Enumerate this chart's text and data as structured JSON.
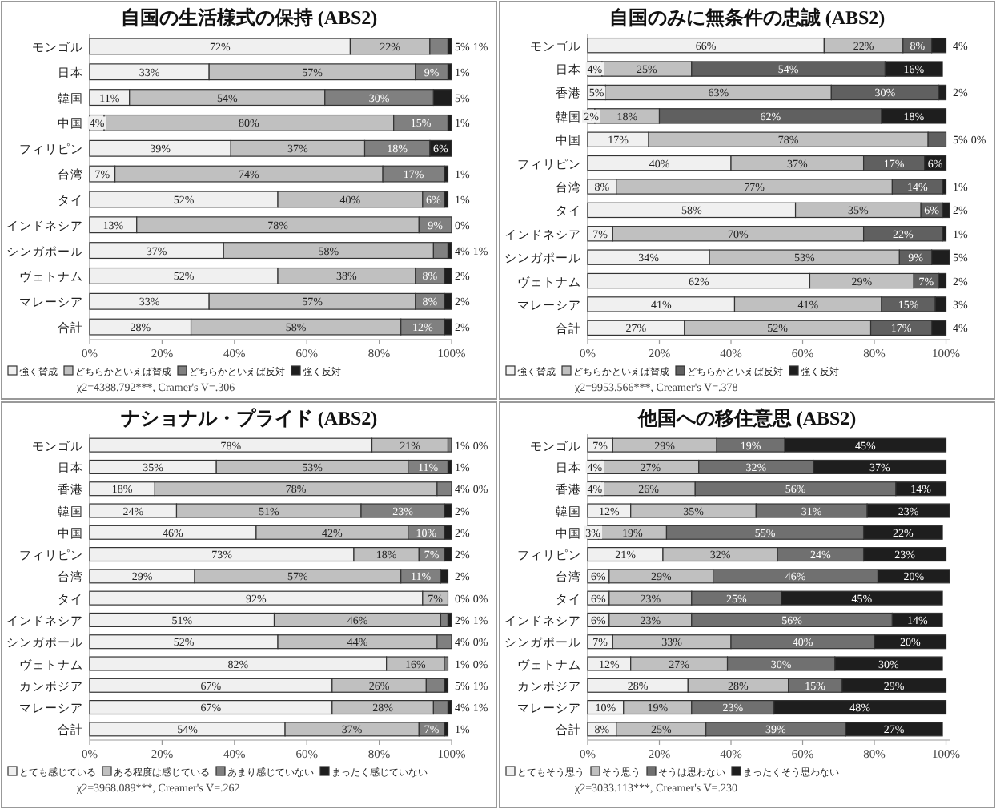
{
  "chart_data": [
    {
      "type": "bar",
      "orientation": "horizontal",
      "stacked": true,
      "title": "自国の生活様式の保持 (ABS2)",
      "categories": [
        "モンゴル",
        "日本",
        "韓国",
        "中国",
        "フィリピン",
        "台湾",
        "タイ",
        "インドネシア",
        "シンガポール",
        "ヴェトナム",
        "マレーシア",
        "合計"
      ],
      "series": [
        {
          "name": "強く賛成",
          "color": "#f0f0f0",
          "values": [
            72,
            33,
            11,
            4,
            39,
            7,
            52,
            13,
            37,
            52,
            33,
            28
          ],
          "value_labels": [
            "72%",
            "33%",
            "11%",
            "4%",
            "39%",
            "7%",
            "52%",
            "13%",
            "37%",
            "52%",
            "33%",
            "28%"
          ]
        },
        {
          "name": "どちらかといえば賛成",
          "color": "#c0c0c0",
          "values": [
            22,
            57,
            54,
            80,
            37,
            74,
            40,
            78,
            58,
            38,
            57,
            58
          ],
          "value_labels": [
            "22%",
            "57%",
            "54%",
            "80%",
            "37%",
            "74%",
            "40%",
            "78%",
            "58%",
            "38%",
            "57%",
            "58%"
          ]
        },
        {
          "name": "どちらかといえば反対",
          "color": "#808080",
          "values": [
            5,
            9,
            30,
            15,
            18,
            17,
            6,
            9,
            4,
            8,
            8,
            12
          ],
          "value_labels": [
            "5%",
            "9%",
            "30%",
            "15%",
            "18%",
            "17%",
            "6%",
            "9%",
            "4%",
            "8%",
            "8%",
            "12%"
          ]
        },
        {
          "name": "強く反対",
          "color": "#1e1e1e",
          "values": [
            1,
            1,
            5,
            1,
            6,
            1,
            1,
            0,
            1,
            2,
            2,
            2
          ],
          "value_labels": [
            "1%",
            "1%",
            "5%",
            "1%",
            "6%",
            "1%",
            "1%",
            "0%",
            "1%",
            "2%",
            "2%",
            "2%"
          ]
        }
      ],
      "xlim": [
        0,
        100
      ],
      "xticks": [
        {
          "value": 0,
          "label": "0%"
        },
        {
          "value": 20,
          "label": "20%"
        },
        {
          "value": 40,
          "label": "40%"
        },
        {
          "value": 60,
          "label": "60%"
        },
        {
          "value": 80,
          "label": "80%"
        },
        {
          "value": 100,
          "label": "100%"
        }
      ],
      "legend": "bottom",
      "annotations": [
        "χ2=4388.792***, Cramer's V=.306"
      ]
    },
    {
      "type": "bar",
      "orientation": "horizontal",
      "stacked": true,
      "title": "自国のみに無条件の忠誠 (ABS2)",
      "categories": [
        "モンゴル",
        "日本",
        "香港",
        "韓国",
        "中国",
        "フィリピン",
        "台湾",
        "タイ",
        "インドネシア",
        "シンガポール",
        "ヴェトナム",
        "マレーシア",
        "合計"
      ],
      "series": [
        {
          "name": "強く賛成",
          "color": "#f0f0f0",
          "values": [
            66,
            4,
            5,
            2,
            17,
            40,
            8,
            58,
            7,
            34,
            62,
            41,
            27
          ],
          "value_labels": [
            "66%",
            "4%",
            "5%",
            "2%",
            "17%",
            "40%",
            "8%",
            "58%",
            "7%",
            "34%",
            "62%",
            "41%",
            "27%"
          ]
        },
        {
          "name": "どちらかといえば賛成",
          "color": "#c0c0c0",
          "values": [
            22,
            25,
            63,
            18,
            78,
            37,
            77,
            35,
            70,
            53,
            29,
            41,
            52
          ],
          "value_labels": [
            "22%",
            "25%",
            "63%",
            "18%",
            "78%",
            "37%",
            "77%",
            "35%",
            "70%",
            "53%",
            "29%",
            "41%",
            "52%"
          ]
        },
        {
          "name": "どちらかといえば反対",
          "color": "#606060",
          "values": [
            8,
            54,
            30,
            62,
            5,
            17,
            14,
            6,
            22,
            9,
            7,
            15,
            17
          ],
          "value_labels": [
            "8%",
            "54%",
            "30%",
            "62%",
            "5%",
            "17%",
            "14%",
            "6%",
            "22%",
            "9%",
            "7%",
            "15%",
            "17%"
          ]
        },
        {
          "name": "強く反対",
          "color": "#1e1e1e",
          "values": [
            4,
            16,
            2,
            18,
            0,
            6,
            1,
            2,
            1,
            5,
            2,
            3,
            4
          ],
          "value_labels": [
            "4%",
            "16%",
            "2%",
            "18%",
            "0%",
            "6%",
            "1%",
            "2%",
            "1%",
            "5%",
            "2%",
            "3%",
            "4%"
          ]
        }
      ],
      "xlim": [
        0,
        101
      ],
      "xticks": [
        {
          "value": 0,
          "label": "0%"
        },
        {
          "value": 20,
          "label": "20%"
        },
        {
          "value": 40,
          "label": "40%"
        },
        {
          "value": 60,
          "label": "60%"
        },
        {
          "value": 80,
          "label": "80%"
        },
        {
          "value": 100,
          "label": "100%"
        }
      ],
      "legend": "bottom",
      "annotations": [
        "χ2=9953.566***, Creamer's V=.378"
      ]
    },
    {
      "type": "bar",
      "orientation": "horizontal",
      "stacked": true,
      "title": "ナショナル・プライド (ABS2)",
      "categories": [
        "モンゴル",
        "日本",
        "香港",
        "韓国",
        "中国",
        "フィリピン",
        "台湾",
        "タイ",
        "インドネシア",
        "シンガポール",
        "ヴェトナム",
        "カンボジア",
        "マレーシア",
        "合計"
      ],
      "series": [
        {
          "name": "とても感じている",
          "color": "#f0f0f0",
          "values": [
            78,
            35,
            18,
            24,
            46,
            73,
            29,
            92,
            51,
            52,
            82,
            67,
            67,
            54
          ],
          "value_labels": [
            "78%",
            "35%",
            "18%",
            "24%",
            "46%",
            "73%",
            "29%",
            "92%",
            "51%",
            "52%",
            "82%",
            "67%",
            "67%",
            "54%"
          ]
        },
        {
          "name": "ある程度は感じている",
          "color": "#c0c0c0",
          "values": [
            21,
            53,
            78,
            51,
            42,
            18,
            57,
            7,
            46,
            44,
            16,
            26,
            28,
            37
          ],
          "value_labels": [
            "21%",
            "53%",
            "78%",
            "51%",
            "42%",
            "18%",
            "57%",
            "7%",
            "46%",
            "44%",
            "16%",
            "26%",
            "28%",
            "37%"
          ]
        },
        {
          "name": "あまり感じていない",
          "color": "#808080",
          "values": [
            1,
            11,
            4,
            23,
            10,
            7,
            11,
            0,
            2,
            4,
            1,
            5,
            4,
            7
          ],
          "value_labels": [
            "1%",
            "11%",
            "4%",
            "23%",
            "10%",
            "7%",
            "11%",
            "0%",
            "2%",
            "4%",
            "1%",
            "5%",
            "4%",
            "7%"
          ]
        },
        {
          "name": "まったく感じていない",
          "color": "#1e1e1e",
          "values": [
            0,
            1,
            0,
            2,
            2,
            2,
            2,
            0,
            1,
            0,
            0,
            1,
            1,
            1
          ],
          "value_labels": [
            "0%",
            "1%",
            "0%",
            "2%",
            "2%",
            "2%",
            "2%",
            "0%",
            "1%",
            "0%",
            "0%",
            "1%",
            "1%",
            "1%"
          ]
        }
      ],
      "xlim": [
        0,
        100
      ],
      "xticks": [
        {
          "value": 0,
          "label": "0%"
        },
        {
          "value": 20,
          "label": "20%"
        },
        {
          "value": 40,
          "label": "40%"
        },
        {
          "value": 60,
          "label": "60%"
        },
        {
          "value": 80,
          "label": "80%"
        },
        {
          "value": 100,
          "label": "100%"
        }
      ],
      "legend": "bottom",
      "annotations": [
        "χ2=3968.089***, Creamer's V=.262"
      ]
    },
    {
      "type": "bar",
      "orientation": "horizontal",
      "stacked": true,
      "title": "他国への移住意思 (ABS2)",
      "categories": [
        "モンゴル",
        "日本",
        "香港",
        "韓国",
        "中国",
        "フィリピン",
        "台湾",
        "タイ",
        "インドネシア",
        "シンガポール",
        "ヴェトナム",
        "カンボジア",
        "マレーシア",
        "合計"
      ],
      "series": [
        {
          "name": "とてもそう思う",
          "color": "#f0f0f0",
          "values": [
            7,
            4,
            4,
            12,
            3,
            21,
            6,
            6,
            6,
            7,
            12,
            28,
            10,
            8
          ],
          "value_labels": [
            "7%",
            "4%",
            "4%",
            "12%",
            "3%",
            "21%",
            "6%",
            "6%",
            "6%",
            "7%",
            "12%",
            "28%",
            "10%",
            "8%"
          ]
        },
        {
          "name": "そう思う",
          "color": "#c0c0c0",
          "values": [
            29,
            27,
            26,
            35,
            19,
            32,
            29,
            23,
            23,
            33,
            27,
            28,
            19,
            25
          ],
          "value_labels": [
            "29%",
            "27%",
            "26%",
            "35%",
            "19%",
            "32%",
            "29%",
            "23%",
            "23%",
            "33%",
            "27%",
            "28%",
            "19%",
            "25%"
          ]
        },
        {
          "name": "そうは思わない",
          "color": "#707070",
          "values": [
            19,
            32,
            56,
            31,
            55,
            24,
            46,
            25,
            56,
            40,
            30,
            15,
            23,
            39
          ],
          "value_labels": [
            "19%",
            "32%",
            "56%",
            "31%",
            "55%",
            "24%",
            "46%",
            "25%",
            "56%",
            "40%",
            "30%",
            "15%",
            "23%",
            "39%"
          ]
        },
        {
          "name": "まったくそう思わない",
          "color": "#1e1e1e",
          "values": [
            45,
            37,
            14,
            23,
            22,
            23,
            20,
            45,
            14,
            20,
            30,
            29,
            48,
            27
          ],
          "value_labels": [
            "45%",
            "37%",
            "14%",
            "23%",
            "22%",
            "23%",
            "20%",
            "45%",
            "14%",
            "20%",
            "30%",
            "29%",
            "48%",
            "27%"
          ]
        }
      ],
      "xlim": [
        0,
        101
      ],
      "xticks": [
        {
          "value": 0,
          "label": "0%"
        },
        {
          "value": 20,
          "label": "20%"
        },
        {
          "value": 40,
          "label": "40%"
        },
        {
          "value": 60,
          "label": "60%"
        },
        {
          "value": 80,
          "label": "80%"
        },
        {
          "value": 100,
          "label": "100%"
        }
      ],
      "legend": "bottom",
      "annotations": [
        "χ2=3033.113***, Creamer's V=.230"
      ]
    }
  ]
}
